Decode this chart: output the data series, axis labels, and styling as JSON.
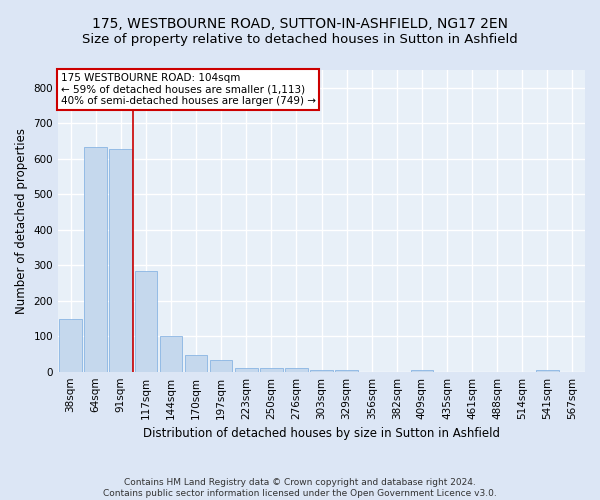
{
  "title": "175, WESTBOURNE ROAD, SUTTON-IN-ASHFIELD, NG17 2EN",
  "subtitle": "Size of property relative to detached houses in Sutton in Ashfield",
  "xlabel": "Distribution of detached houses by size in Sutton in Ashfield",
  "ylabel": "Number of detached properties",
  "footnote": "Contains HM Land Registry data © Crown copyright and database right 2024.\nContains public sector information licensed under the Open Government Licence v3.0.",
  "categories": [
    "38sqm",
    "64sqm",
    "91sqm",
    "117sqm",
    "144sqm",
    "170sqm",
    "197sqm",
    "223sqm",
    "250sqm",
    "276sqm",
    "303sqm",
    "329sqm",
    "356sqm",
    "382sqm",
    "409sqm",
    "435sqm",
    "461sqm",
    "488sqm",
    "514sqm",
    "541sqm",
    "567sqm"
  ],
  "values": [
    148,
    632,
    627,
    284,
    101,
    46,
    32,
    11,
    10,
    10,
    6,
    6,
    0,
    0,
    5,
    0,
    0,
    0,
    0,
    5,
    0
  ],
  "bar_color": "#c5d8ed",
  "bar_edge_color": "#7aabe0",
  "annotation_text_line1": "175 WESTBOURNE ROAD: 104sqm",
  "annotation_text_line2": "← 59% of detached houses are smaller (1,113)",
  "annotation_text_line3": "40% of semi-detached houses are larger (749) →",
  "annotation_box_color": "#cc0000",
  "vline_color": "#cc0000",
  "vline_x": 2.5,
  "ylim": [
    0,
    850
  ],
  "yticks": [
    0,
    100,
    200,
    300,
    400,
    500,
    600,
    700,
    800
  ],
  "background_color": "#dce6f5",
  "plot_bg_color": "#e8f0f8",
  "grid_color": "#ffffff",
  "title_fontsize": 10,
  "subtitle_fontsize": 9.5,
  "axis_label_fontsize": 8.5,
  "tick_fontsize": 7.5,
  "annotation_fontsize": 7.5,
  "footnote_fontsize": 6.5
}
